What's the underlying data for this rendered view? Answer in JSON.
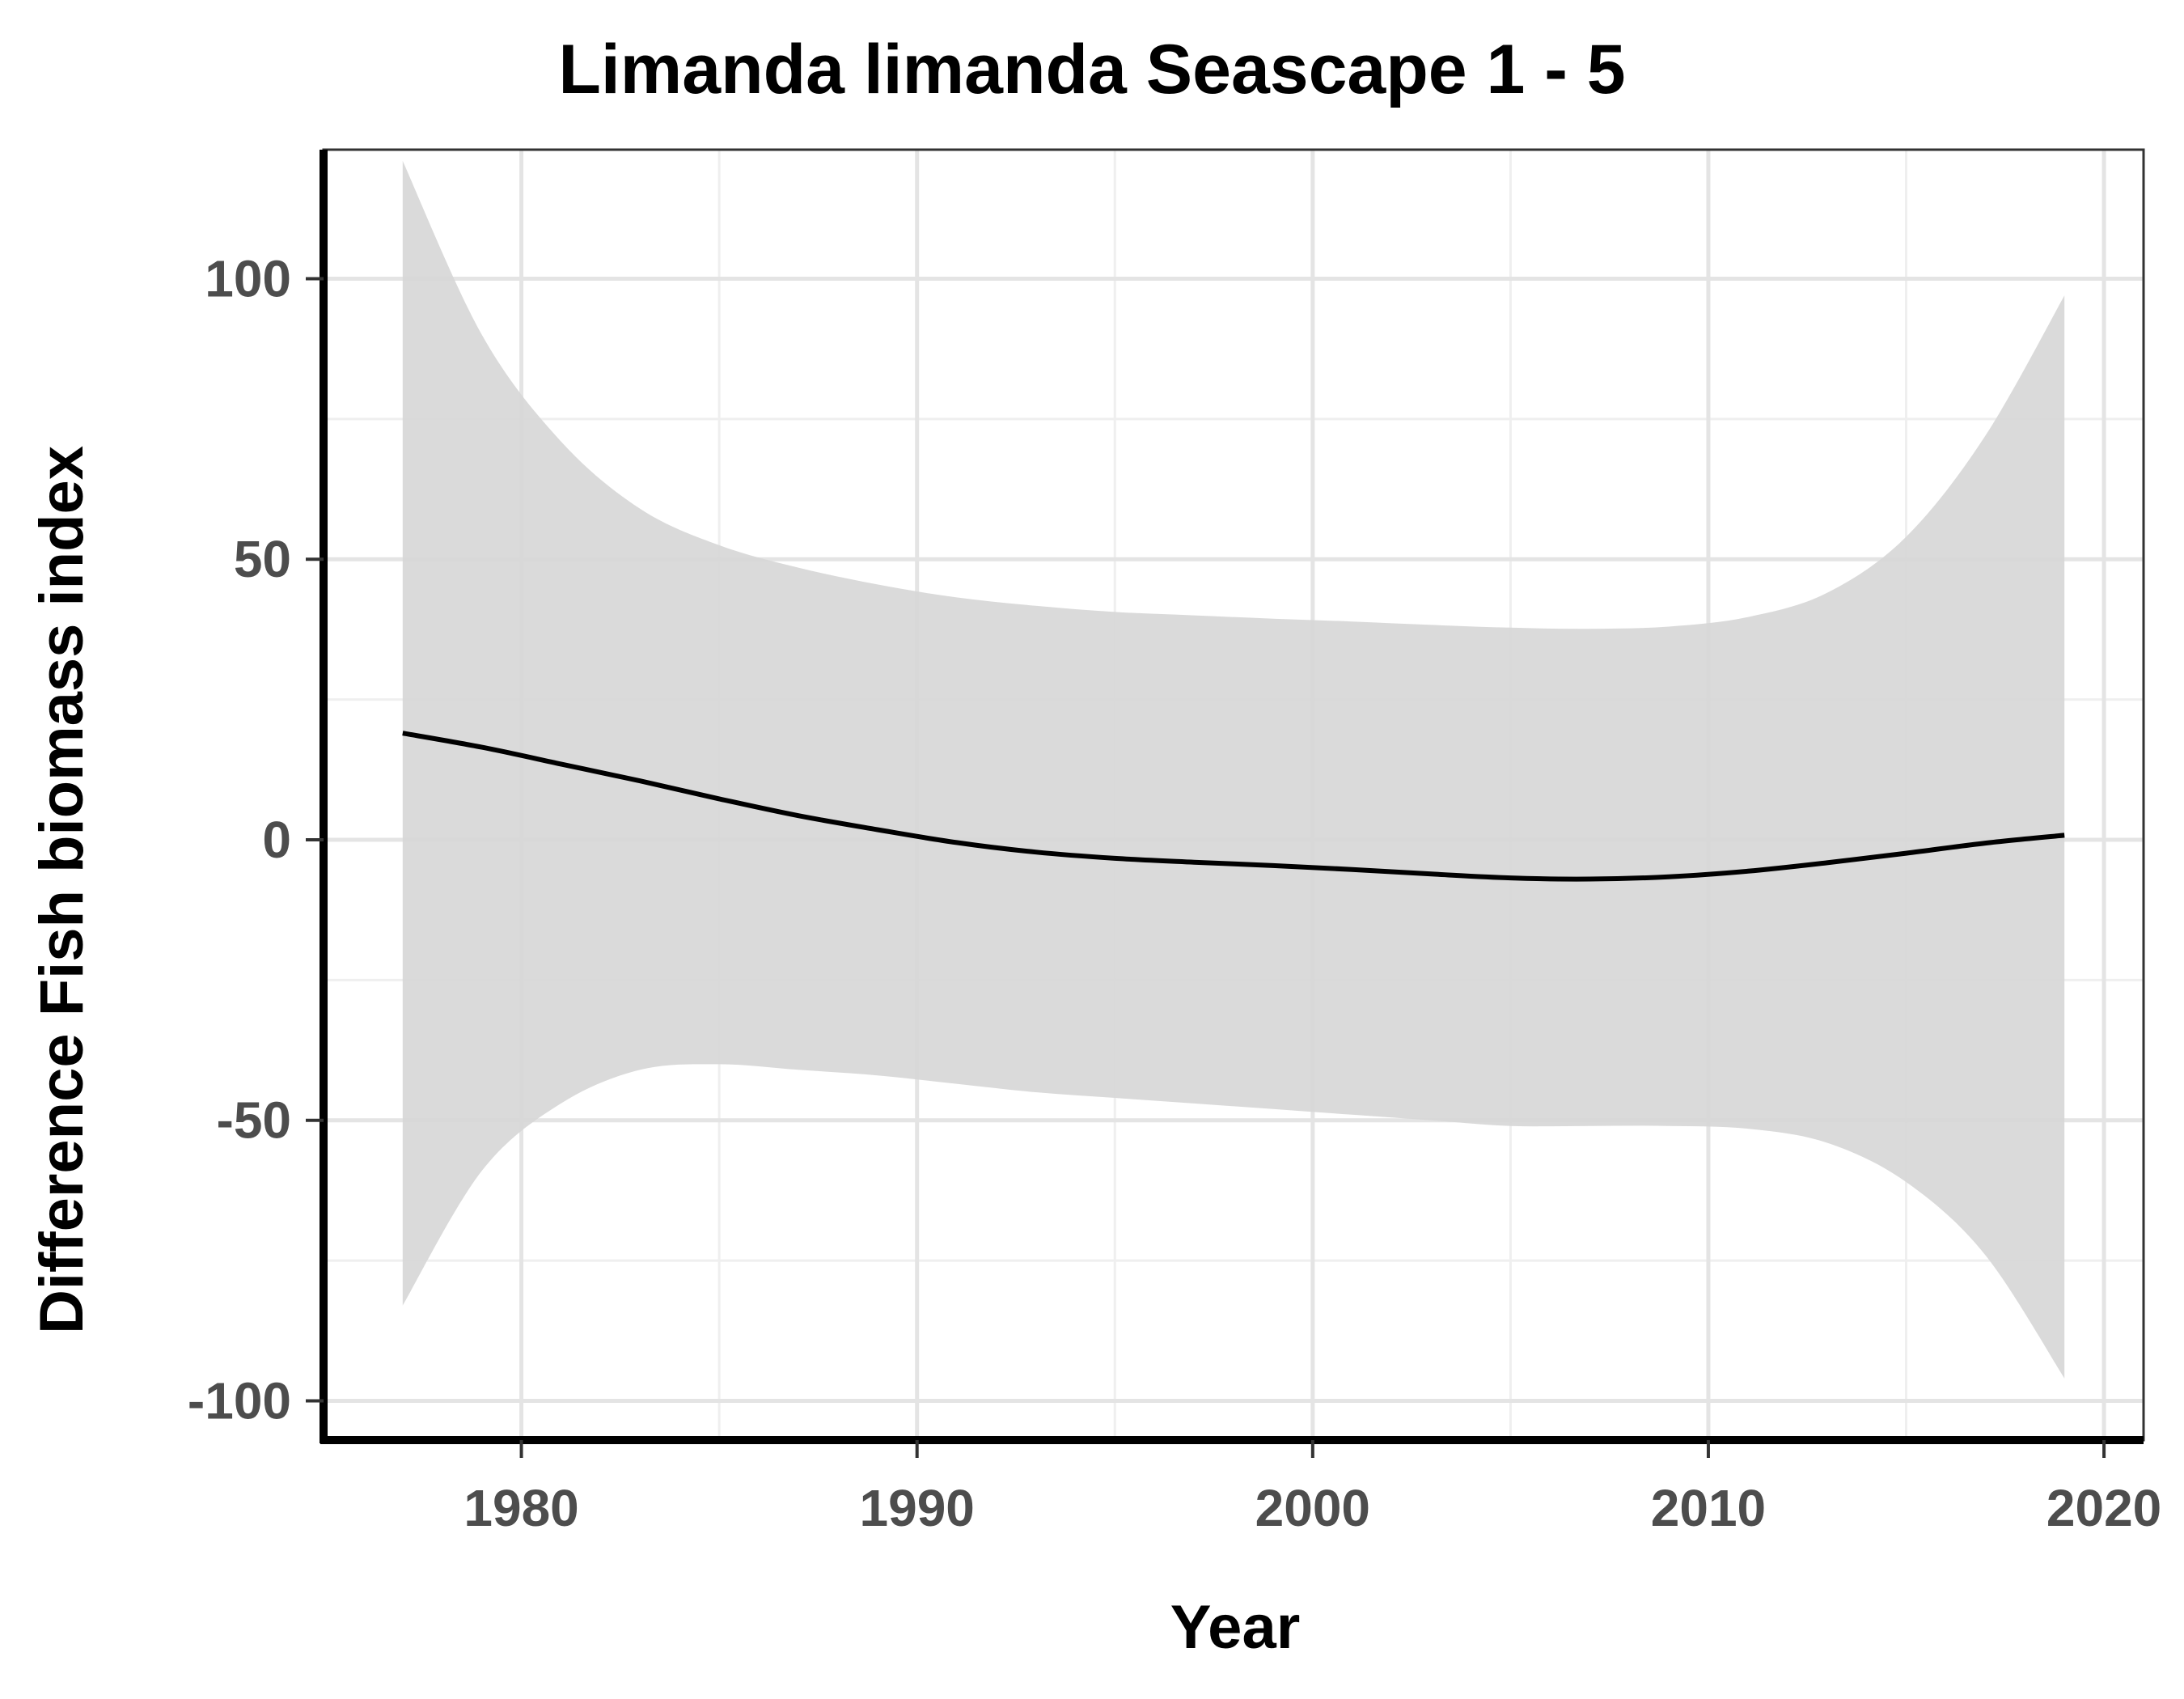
{
  "chart_data": {
    "type": "line",
    "title": "Limanda limanda Seascape 1 - 5",
    "xlabel": "Year",
    "ylabel": "Difference Fish biomass index",
    "xlim": [
      1975,
      2021
    ],
    "ylim": [
      -107,
      123
    ],
    "x_ticks": [
      1980,
      1990,
      2000,
      2010,
      2020
    ],
    "x_tick_labels": [
      "1980",
      "1990",
      "2000",
      "2010",
      "2020"
    ],
    "y_ticks": [
      -100,
      -50,
      0,
      50,
      100
    ],
    "y_tick_labels": [
      "-100",
      "-50",
      "0",
      "50",
      "100"
    ],
    "grid": true,
    "legend": "none",
    "series": [
      {
        "x": [
          1977,
          1979,
          1981,
          1983,
          1985,
          1987,
          1989,
          1991,
          1993,
          1995,
          1997,
          1999,
          2001,
          2003,
          2005,
          2007,
          2009,
          2011,
          2013,
          2015,
          2017,
          2019
        ],
        "y": [
          19,
          16.5,
          13.5,
          10.5,
          7.3,
          4.3,
          1.8,
          -0.5,
          -2.2,
          -3.3,
          -4,
          -4.6,
          -5.3,
          -6.1,
          -6.8,
          -7,
          -6.6,
          -5.6,
          -4.1,
          -2.4,
          -0.6,
          0.8
        ],
        "upper": [
          121,
          90,
          71,
          59,
          52.5,
          48.5,
          45.5,
          43.2,
          41.7,
          40.6,
          40,
          39.4,
          38.9,
          38.3,
          37.8,
          37.6,
          38,
          39.7,
          44,
          54,
          72,
          97
        ],
        "lower": [
          -83,
          -59,
          -47,
          -41,
          -40,
          -41,
          -42,
          -43.5,
          -45,
          -46,
          -47,
          -48,
          -49,
          -50,
          -51,
          -51,
          -51,
          -51.5,
          -54,
          -61,
          -74,
          -96
        ],
        "color": "#000000",
        "band_color": "#d6d6d6"
      }
    ],
    "colors": {
      "background": "#ffffff",
      "grid_major": "#e4e4e4",
      "grid_minor": "#efefef",
      "axis": "#000000",
      "panel_border": "#333333"
    }
  }
}
